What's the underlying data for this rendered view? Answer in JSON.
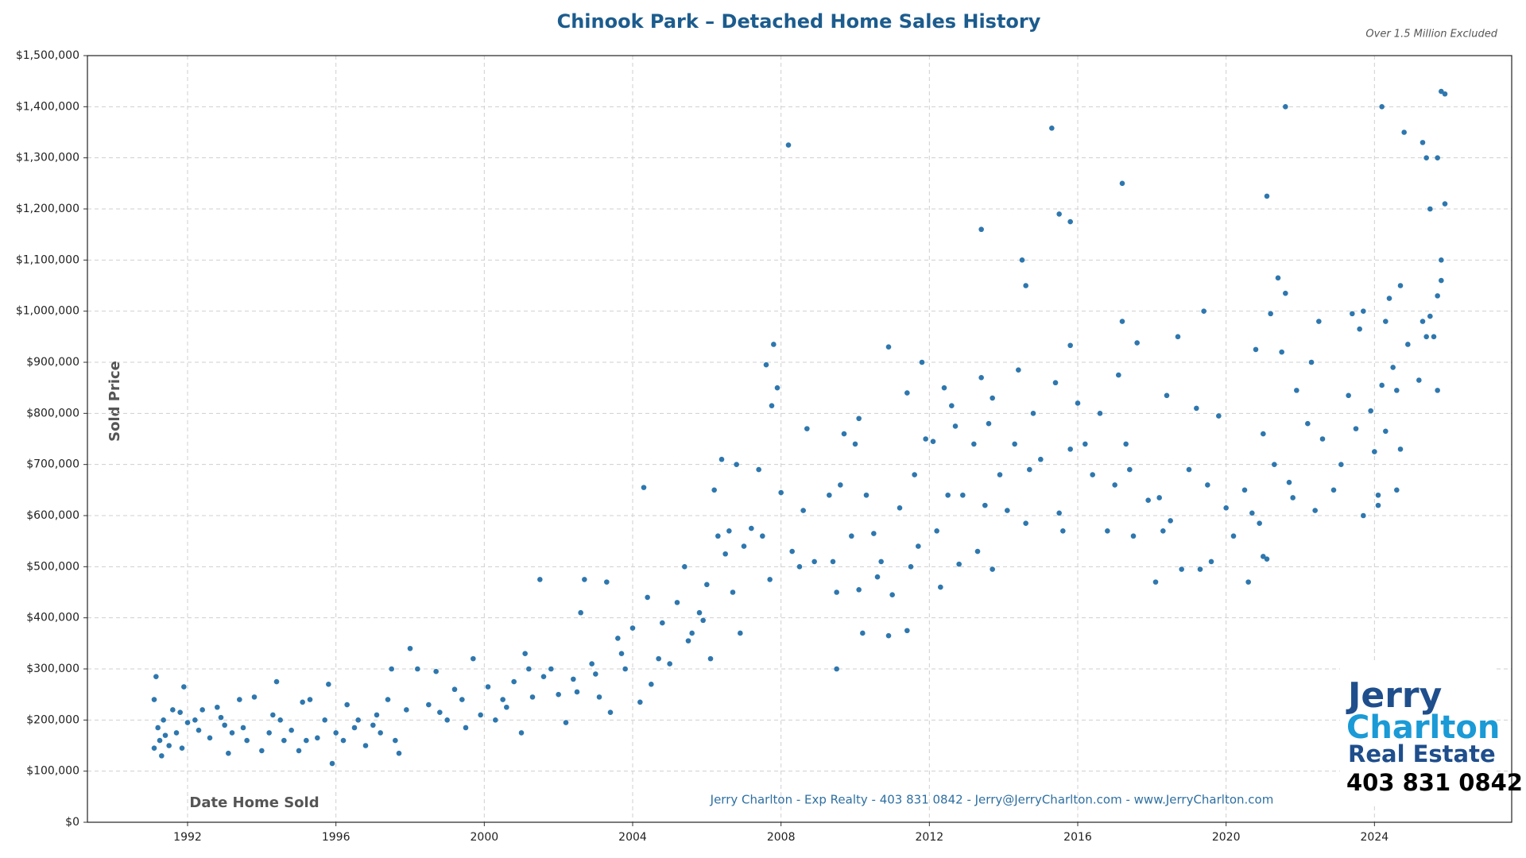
{
  "chart_data": {
    "type": "scatter",
    "title": "Chinook Park – Detached Home Sales History",
    "subtitle": "Over 1.5 Million Excluded",
    "y_label": "Sold Price",
    "x_label": "Date Home Sold",
    "footer": "Jerry Charlton - Exp Realty - 403 831 0842 - Jerry@JerryCharlton.com - www.JerryCharlton.com",
    "logo": {
      "line1": "Jerry",
      "line2": "Charlton",
      "line3": "Real Estate",
      "phone": "403 831 0842"
    },
    "color": "#2e77ae",
    "grid": true,
    "xlim": [
      1989.3,
      2027.7
    ],
    "ylim": [
      0,
      1500000
    ],
    "xticks": [
      1992,
      1996,
      2000,
      2004,
      2008,
      2012,
      2016,
      2020,
      2024
    ],
    "yticks": [
      {
        "value": 0,
        "label": "$0"
      },
      {
        "value": 100000,
        "label": "$100,000"
      },
      {
        "value": 200000,
        "label": "$200,000"
      },
      {
        "value": 300000,
        "label": "$300,000"
      },
      {
        "value": 400000,
        "label": "$400,000"
      },
      {
        "value": 500000,
        "label": "$500,000"
      },
      {
        "value": 600000,
        "label": "$600,000"
      },
      {
        "value": 700000,
        "label": "$700,000"
      },
      {
        "value": 800000,
        "label": "$800,000"
      },
      {
        "value": 900000,
        "label": "$900,000"
      },
      {
        "value": 1000000,
        "label": "$1,000,000"
      },
      {
        "value": 1100000,
        "label": "$1,100,000"
      },
      {
        "value": 1200000,
        "label": "$1,200,000"
      },
      {
        "value": 1300000,
        "label": "$1,300,000"
      },
      {
        "value": 1400000,
        "label": "$1,400,000"
      },
      {
        "value": 1500000,
        "label": "$1,500,000"
      }
    ],
    "x": [
      1991.1,
      1991.1,
      1991.15,
      1991.2,
      1991.25,
      1991.3,
      1991.35,
      1991.5,
      1991.6,
      1991.7,
      1991.8,
      1991.85,
      1991.9,
      1992.2,
      1992.3,
      1992.4,
      1992.6,
      1992.8,
      1993.0,
      1993.1,
      1993.2,
      1993.4,
      1993.6,
      1993.8,
      1994.0,
      1994.2,
      1994.4,
      1994.5,
      1994.6,
      1994.8,
      1995.0,
      1995.1,
      1995.3,
      1995.5,
      1995.7,
      1995.8,
      1995.9,
      1996.0,
      1996.2,
      1996.3,
      1996.6,
      1996.8,
      1997.0,
      1997.2,
      1997.4,
      1997.5,
      1997.6,
      1997.7,
      1997.9,
      1998.0,
      1998.2,
      1998.5,
      1998.7,
      1999.0,
      1999.2,
      1999.4,
      1999.7,
      1999.9,
      2000.1,
      2000.3,
      2000.6,
      2000.8,
      2001.0,
      2001.1,
      2001.3,
      2001.5,
      2001.6,
      2001.8,
      2002.0,
      2002.2,
      2002.4,
      2002.6,
      2002.7,
      2002.9,
      2003.1,
      2003.3,
      2003.4,
      2003.6,
      2003.8,
      2004.0,
      2004.2,
      2004.4,
      2004.3,
      2004.5,
      2004.8,
      2005.0,
      2005.2,
      2005.4,
      2005.6,
      2005.8,
      2006.0,
      2006.1,
      2006.2,
      2006.3,
      2006.4,
      2006.6,
      2006.7,
      2006.8,
      2006.9,
      2007.2,
      2007.4,
      2007.5,
      2007.6,
      2007.7,
      2007.75,
      2007.8,
      2007.9,
      1991.4,
      1992.0,
      1992.9,
      1993.5,
      1994.3,
      1995.2,
      1996.5,
      1997.1,
      1998.8,
      1999.5,
      2000.5,
      2001.2,
      2002.5,
      2003.0,
      2003.7,
      2004.7,
      2005.5,
      2005.9,
      2006.5,
      2007.0,
      2008.2,
      2008.0,
      2008.3,
      2008.5,
      2008.6,
      2008.7,
      2008.9,
      2009.3,
      2009.4,
      2009.5,
      2009.5,
      2009.6,
      2009.7,
      2009.9,
      2010.0,
      2010.1,
      2010.1,
      2010.2,
      2010.3,
      2010.5,
      2010.6,
      2010.7,
      2010.9,
      2010.9,
      2011.0,
      2011.2,
      2011.4,
      2011.4,
      2011.5,
      2011.6,
      2011.7,
      2011.8,
      2011.9,
      2012.1,
      2012.2,
      2012.3,
      2012.4,
      2012.5,
      2012.6,
      2012.7,
      2012.8,
      2012.9,
      2013.2,
      2013.3,
      2013.4,
      2013.4,
      2013.5,
      2013.6,
      2013.7,
      2013.7,
      2013.9,
      2014.1,
      2014.3,
      2014.4,
      2014.5,
      2014.6,
      2014.6,
      2014.7,
      2014.8,
      2015.0,
      2015.3,
      2015.4,
      2015.5,
      2015.5,
      2015.6,
      2015.8,
      2015.8,
      2015.8,
      2016.0,
      2016.2,
      2016.4,
      2016.6,
      2016.8,
      2017.0,
      2017.1,
      2017.2,
      2017.2,
      2017.3,
      2017.4,
      2017.5,
      2017.6,
      2017.9,
      2018.1,
      2018.2,
      2018.3,
      2018.4,
      2018.5,
      2018.7,
      2018.8,
      2019.0,
      2019.2,
      2019.3,
      2019.4,
      2019.5,
      2019.6,
      2019.8,
      2020.0,
      2020.2,
      2020.5,
      2020.6,
      2020.7,
      2020.8,
      2020.9,
      2021.0,
      2021.0,
      2021.1,
      2021.1,
      2021.2,
      2021.3,
      2021.4,
      2021.5,
      2021.6,
      2021.6,
      2021.7,
      2021.8,
      2021.9,
      2022.2,
      2022.3,
      2022.4,
      2022.5,
      2022.6,
      2022.9,
      2023.1,
      2023.3,
      2023.4,
      2023.5,
      2023.6,
      2023.7,
      2023.7,
      2023.9,
      2024.0,
      2024.1,
      2024.1,
      2024.2,
      2024.2,
      2024.3,
      2024.3,
      2024.4,
      2024.5,
      2024.6,
      2024.6,
      2024.7,
      2024.7,
      2024.8,
      2024.9,
      2025.2,
      2025.3,
      2025.3,
      2025.4,
      2025.4,
      2025.5,
      2025.5,
      2025.6,
      2025.7,
      2025.7,
      2025.7,
      2025.8,
      2025.8,
      2025.8,
      2025.9,
      2025.9
    ],
    "values": [
      145000,
      240000,
      285000,
      185000,
      160000,
      130000,
      200000,
      150000,
      220000,
      175000,
      215000,
      145000,
      265000,
      200000,
      180000,
      220000,
      165000,
      225000,
      190000,
      135000,
      175000,
      240000,
      160000,
      245000,
      140000,
      175000,
      275000,
      200000,
      160000,
      180000,
      140000,
      235000,
      240000,
      165000,
      200000,
      270000,
      115000,
      175000,
      160000,
      230000,
      200000,
      150000,
      190000,
      175000,
      240000,
      300000,
      160000,
      135000,
      220000,
      340000,
      300000,
      230000,
      295000,
      200000,
      260000,
      240000,
      320000,
      210000,
      265000,
      200000,
      225000,
      275000,
      175000,
      330000,
      245000,
      475000,
      285000,
      300000,
      250000,
      195000,
      280000,
      410000,
      475000,
      310000,
      245000,
      470000,
      215000,
      360000,
      300000,
      380000,
      235000,
      440000,
      655000,
      270000,
      390000,
      310000,
      430000,
      500000,
      370000,
      410000,
      465000,
      320000,
      650000,
      560000,
      710000,
      570000,
      450000,
      700000,
      370000,
      575000,
      690000,
      560000,
      895000,
      475000,
      815000,
      935000,
      850000,
      170000,
      195000,
      205000,
      185000,
      210000,
      160000,
      185000,
      210000,
      215000,
      185000,
      240000,
      300000,
      255000,
      290000,
      330000,
      320000,
      355000,
      395000,
      525000,
      540000,
      1325000,
      645000,
      530000,
      500000,
      610000,
      770000,
      510000,
      640000,
      510000,
      450000,
      300000,
      660000,
      760000,
      560000,
      740000,
      790000,
      455000,
      370000,
      640000,
      565000,
      480000,
      510000,
      930000,
      365000,
      445000,
      615000,
      840000,
      375000,
      500000,
      680000,
      540000,
      900000,
      750000,
      745000,
      570000,
      460000,
      850000,
      640000,
      815000,
      775000,
      505000,
      640000,
      740000,
      530000,
      870000,
      1160000,
      620000,
      780000,
      830000,
      495000,
      680000,
      610000,
      740000,
      885000,
      1100000,
      1050000,
      585000,
      690000,
      800000,
      710000,
      1358000,
      860000,
      1190000,
      605000,
      570000,
      1175000,
      933000,
      730000,
      820000,
      740000,
      680000,
      800000,
      570000,
      660000,
      875000,
      1250000,
      980000,
      740000,
      690000,
      560000,
      938000,
      630000,
      470000,
      635000,
      570000,
      835000,
      590000,
      950000,
      495000,
      690000,
      810000,
      495000,
      1000000,
      660000,
      510000,
      795000,
      615000,
      560000,
      650000,
      470000,
      605000,
      925000,
      585000,
      760000,
      520000,
      515000,
      1225000,
      995000,
      700000,
      1065000,
      920000,
      1400000,
      1035000,
      665000,
      635000,
      845000,
      780000,
      900000,
      610000,
      980000,
      750000,
      650000,
      700000,
      835000,
      995000,
      770000,
      965000,
      600000,
      1000000,
      805000,
      725000,
      640000,
      620000,
      855000,
      1400000,
      765000,
      980000,
      1025000,
      890000,
      650000,
      845000,
      1050000,
      730000,
      1350000,
      935000,
      865000,
      1330000,
      980000,
      950000,
      1300000,
      1200000,
      990000,
      950000,
      845000,
      1030000,
      1300000,
      1430000,
      1060000,
      1100000,
      1425000,
      1210000
    ]
  }
}
